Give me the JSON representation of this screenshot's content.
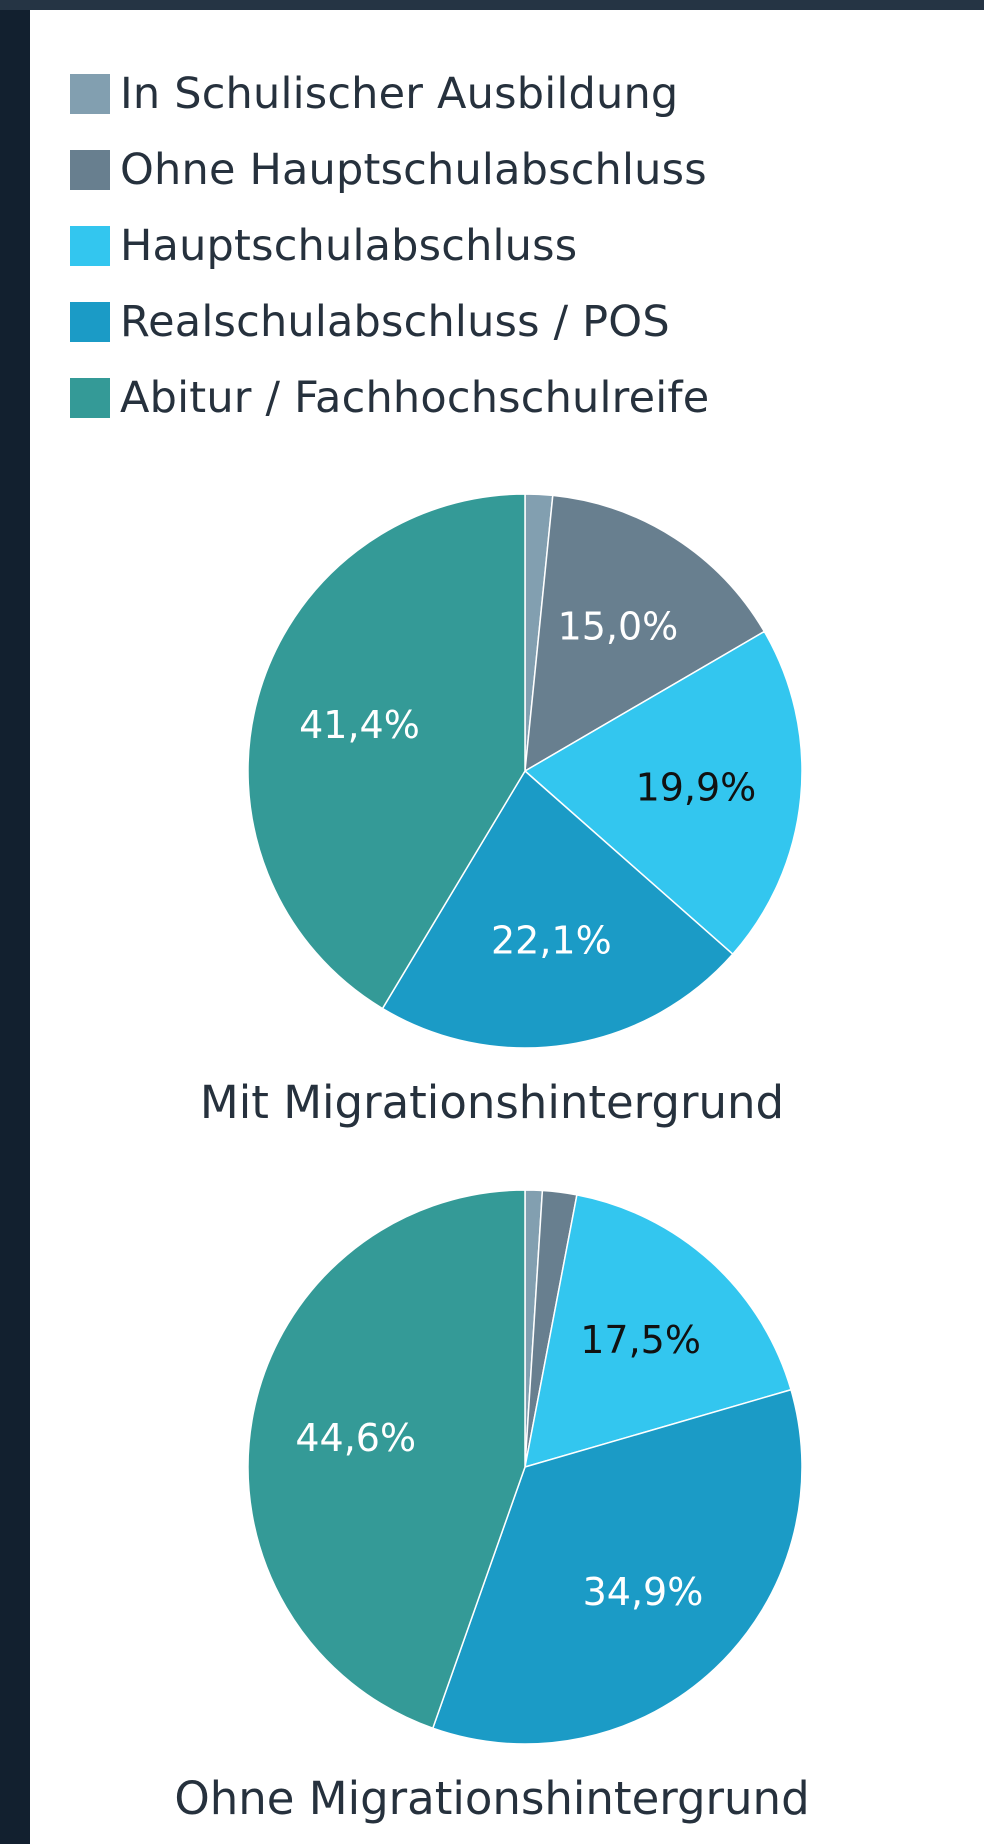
{
  "legend": {
    "items": [
      {
        "label": "In Schulischer Ausbildung",
        "color": "#829fb0"
      },
      {
        "label": "Ohne Hauptschulabschluss",
        "color": "#687f8f"
      },
      {
        "label": "Hauptschulabschluss",
        "color": "#33c6ef"
      },
      {
        "label": "Realschulabschluss / POS",
        "color": "#1b9bc6"
      },
      {
        "label": "Abitur / Fachhochschulreife",
        "color": "#349a97"
      }
    ]
  },
  "chart_data": [
    {
      "type": "pie",
      "title": "Mit Migrationshintergrund",
      "categories": [
        "In Schulischer Ausbildung",
        "Ohne Hauptschulabschluss",
        "Hauptschulabschluss",
        "Realschulabschluss / POS",
        "Abitur / Fachhochschulreife"
      ],
      "values": [
        1.6,
        15.0,
        19.9,
        22.1,
        41.4
      ],
      "labels": [
        "",
        "15,0%",
        "19,9%",
        "22,1%",
        "41,4%"
      ],
      "label_colors": [
        "#ffffff",
        "#ffffff",
        "#111111",
        "#ffffff",
        "#ffffff"
      ],
      "legend": "top"
    },
    {
      "type": "pie",
      "title": "Ohne Migrationshintergrund",
      "categories": [
        "In Schulischer Ausbildung",
        "Ohne Hauptschulabschluss",
        "Hauptschulabschluss",
        "Realschulabschluss / POS",
        "Abitur / Fachhochschulreife"
      ],
      "values": [
        1.0,
        2.0,
        17.5,
        34.9,
        44.6
      ],
      "labels": [
        "",
        "",
        "17,5%",
        "34,9%",
        "44,6%"
      ],
      "label_colors": [
        "#ffffff",
        "#ffffff",
        "#111111",
        "#ffffff",
        "#ffffff"
      ],
      "legend": "top"
    }
  ]
}
